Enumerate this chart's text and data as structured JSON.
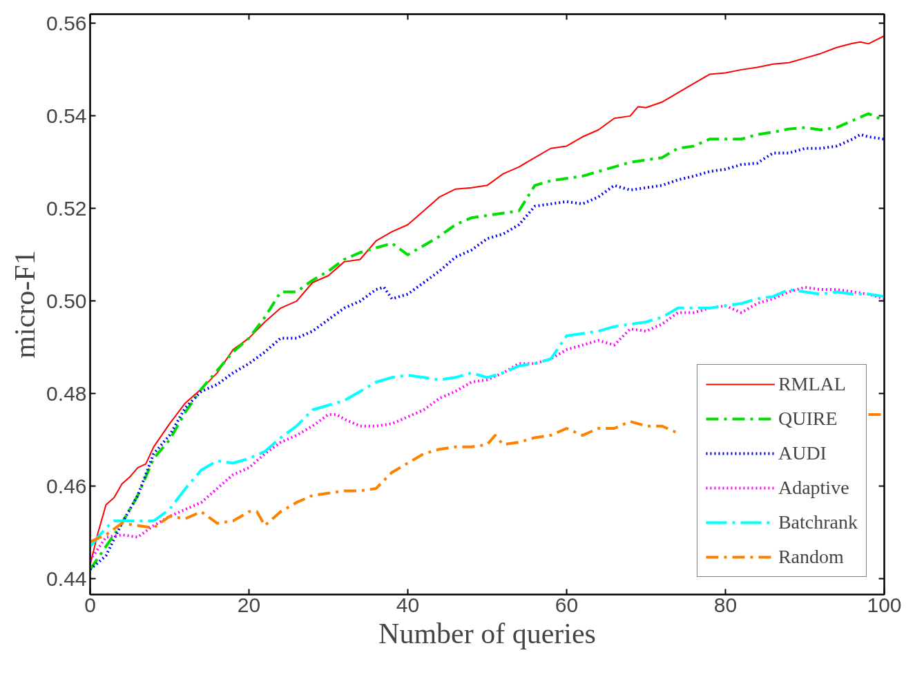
{
  "chart_data": {
    "type": "line",
    "xlabel": "Number of queries",
    "ylabel": "micro-F1",
    "xlim": [
      0,
      100
    ],
    "ylim": [
      0.4366,
      0.562
    ],
    "xticks": [
      0,
      20,
      40,
      60,
      80,
      100
    ],
    "yticks": [
      {
        "value": 0.44,
        "label": "0.44"
      },
      {
        "value": 0.46,
        "label": "0.46"
      },
      {
        "value": 0.48,
        "label": "0.48"
      },
      {
        "value": 0.5,
        "label": "0.50"
      },
      {
        "value": 0.52,
        "label": "0.52"
      },
      {
        "value": 0.54,
        "label": "0.54"
      },
      {
        "value": 0.56,
        "label": "0.56"
      }
    ],
    "grid": false,
    "legend": "bottom right",
    "marker": "none",
    "series": [
      {
        "name": "RMLAL",
        "color": "#ff0000",
        "line_style": "solid",
        "x": [
          0,
          1,
          2,
          3,
          4,
          5,
          6,
          7,
          8,
          10,
          12,
          14,
          16,
          18,
          20,
          22,
          24,
          26,
          28,
          30,
          32,
          34,
          36,
          38,
          40,
          42,
          44,
          46,
          48,
          50,
          52,
          54,
          56,
          58,
          60,
          62,
          64,
          66,
          68,
          69,
          70,
          72,
          74,
          76,
          78,
          80,
          82,
          84,
          86,
          88,
          90,
          92,
          94,
          96,
          97,
          98,
          100
        ],
        "values": [
          0.443,
          0.45,
          0.456,
          0.4575,
          0.4605,
          0.462,
          0.464,
          0.4648,
          0.4685,
          0.4735,
          0.478,
          0.481,
          0.4845,
          0.4895,
          0.492,
          0.4955,
          0.4985,
          0.5,
          0.504,
          0.5055,
          0.5085,
          0.509,
          0.513,
          0.515,
          0.5165,
          0.5195,
          0.5225,
          0.5242,
          0.5245,
          0.525,
          0.5275,
          0.529,
          0.531,
          0.533,
          0.5335,
          0.5355,
          0.537,
          0.5395,
          0.54,
          0.542,
          0.5418,
          0.543,
          0.545,
          0.547,
          0.549,
          0.5493,
          0.55,
          0.5505,
          0.5512,
          0.5515,
          0.5525,
          0.5535,
          0.5548,
          0.5557,
          0.556,
          0.5556,
          0.5573
        ]
      },
      {
        "name": "QUIRE",
        "color": "#00dd00",
        "line_style": "dashdot",
        "x": [
          0,
          2,
          4,
          6,
          8,
          10,
          12,
          14,
          16,
          18,
          20,
          22,
          24,
          26,
          28,
          30,
          32,
          34,
          36,
          38,
          40,
          42,
          44,
          46,
          48,
          50,
          52,
          54,
          56,
          58,
          60,
          62,
          64,
          66,
          68,
          70,
          72,
          74,
          76,
          78,
          80,
          82,
          84,
          86,
          88,
          90,
          92,
          94,
          96,
          98,
          100
        ],
        "values": [
          0.442,
          0.447,
          0.452,
          0.458,
          0.466,
          0.47,
          0.476,
          0.481,
          0.485,
          0.489,
          0.492,
          0.4965,
          0.502,
          0.502,
          0.5045,
          0.5065,
          0.509,
          0.5105,
          0.5115,
          0.5125,
          0.51,
          0.512,
          0.514,
          0.5165,
          0.518,
          0.5185,
          0.519,
          0.5195,
          0.525,
          0.526,
          0.5265,
          0.527,
          0.528,
          0.529,
          0.53,
          0.5305,
          0.531,
          0.533,
          0.5335,
          0.535,
          0.535,
          0.535,
          0.536,
          0.5365,
          0.5372,
          0.5375,
          0.537,
          0.5375,
          0.539,
          0.5405,
          0.539
        ]
      },
      {
        "name": "AUDI",
        "color": "#0000ee",
        "line_style": "dotted",
        "x": [
          0,
          2,
          4,
          6,
          8,
          10,
          12,
          14,
          16,
          18,
          20,
          22,
          24,
          26,
          28,
          30,
          32,
          34,
          36,
          37,
          38,
          40,
          42,
          44,
          46,
          48,
          50,
          52,
          54,
          56,
          58,
          60,
          62,
          64,
          66,
          68,
          70,
          72,
          74,
          76,
          78,
          80,
          82,
          84,
          86,
          88,
          90,
          92,
          94,
          96,
          97,
          98,
          100
        ],
        "values": [
          0.442,
          0.445,
          0.452,
          0.458,
          0.467,
          0.471,
          0.477,
          0.4805,
          0.482,
          0.4845,
          0.4865,
          0.489,
          0.492,
          0.492,
          0.4935,
          0.496,
          0.4985,
          0.5,
          0.5025,
          0.503,
          0.5005,
          0.5015,
          0.504,
          0.5065,
          0.5095,
          0.511,
          0.5135,
          0.5145,
          0.5165,
          0.5205,
          0.521,
          0.5215,
          0.521,
          0.5225,
          0.525,
          0.524,
          0.5245,
          0.525,
          0.5262,
          0.527,
          0.528,
          0.5285,
          0.5295,
          0.5298,
          0.532,
          0.532,
          0.533,
          0.533,
          0.5335,
          0.535,
          0.536,
          0.5355,
          0.535
        ]
      },
      {
        "name": "Adaptive",
        "color": "#ff00ff",
        "line_style": "dotted",
        "x": [
          0,
          2,
          4,
          6,
          8,
          10,
          12,
          14,
          16,
          18,
          20,
          22,
          24,
          26,
          28,
          30,
          31,
          32,
          34,
          36,
          38,
          40,
          42,
          44,
          46,
          48,
          50,
          52,
          54,
          56,
          58,
          60,
          62,
          64,
          66,
          68,
          70,
          72,
          74,
          76,
          78,
          80,
          82,
          84,
          86,
          88,
          90,
          92,
          94,
          96,
          98,
          100
        ],
        "values": [
          0.444,
          0.449,
          0.4495,
          0.449,
          0.4515,
          0.4535,
          0.455,
          0.4565,
          0.4595,
          0.4625,
          0.464,
          0.467,
          0.4695,
          0.471,
          0.473,
          0.4755,
          0.4755,
          0.4745,
          0.473,
          0.473,
          0.4735,
          0.475,
          0.4765,
          0.479,
          0.4805,
          0.4825,
          0.483,
          0.4845,
          0.4865,
          0.4865,
          0.4875,
          0.4895,
          0.4905,
          0.4915,
          0.4905,
          0.494,
          0.4935,
          0.495,
          0.4975,
          0.4975,
          0.4985,
          0.499,
          0.4975,
          0.4995,
          0.5005,
          0.502,
          0.503,
          0.5025,
          0.5025,
          0.502,
          0.5015,
          0.5005
        ]
      },
      {
        "name": "Batchrank",
        "color": "#00ffff",
        "line_style": "longdashdot",
        "x": [
          0,
          2,
          3,
          6,
          8,
          10,
          12,
          14,
          16,
          18,
          20,
          22,
          24,
          26,
          28,
          30,
          32,
          34,
          36,
          38,
          40,
          42,
          44,
          46,
          48,
          50,
          52,
          54,
          56,
          58,
          60,
          62,
          64,
          66,
          68,
          70,
          72,
          74,
          76,
          78,
          80,
          82,
          84,
          86,
          88,
          90,
          92,
          94,
          96,
          98,
          100
        ],
        "values": [
          0.447,
          0.451,
          0.4525,
          0.4525,
          0.4525,
          0.455,
          0.4595,
          0.4635,
          0.4655,
          0.465,
          0.466,
          0.4675,
          0.4705,
          0.473,
          0.4765,
          0.4775,
          0.4785,
          0.4805,
          0.4825,
          0.4835,
          0.484,
          0.4835,
          0.483,
          0.4835,
          0.4845,
          0.4835,
          0.4845,
          0.486,
          0.4865,
          0.4875,
          0.4925,
          0.493,
          0.4935,
          0.4945,
          0.495,
          0.4955,
          0.4965,
          0.4985,
          0.4985,
          0.4985,
          0.499,
          0.4995,
          0.5005,
          0.501,
          0.5025,
          0.502,
          0.5015,
          0.502,
          0.5015,
          0.5015,
          0.501
        ]
      },
      {
        "name": "Random",
        "color": "#ff8000",
        "line_style": "dashdot",
        "x": [
          0,
          2,
          4,
          6,
          8,
          10,
          12,
          14,
          16,
          18,
          20,
          21,
          22,
          24,
          26,
          28,
          30,
          32,
          34,
          36,
          38,
          40,
          42,
          44,
          46,
          48,
          50,
          51,
          52,
          54,
          56,
          58,
          60,
          62,
          64,
          66,
          68,
          70,
          72,
          74,
          76,
          98,
          100
        ],
        "values": [
          0.448,
          0.4495,
          0.452,
          0.4515,
          0.451,
          0.4535,
          0.453,
          0.4545,
          0.452,
          0.4525,
          0.4545,
          0.4545,
          0.4515,
          0.4545,
          0.4565,
          0.458,
          0.4585,
          0.459,
          0.459,
          0.4595,
          0.463,
          0.465,
          0.467,
          0.468,
          0.4685,
          0.4685,
          0.469,
          0.471,
          0.469,
          0.4695,
          0.4705,
          0.471,
          0.4725,
          0.471,
          0.4725,
          0.4725,
          0.474,
          0.473,
          0.473,
          0.4715,
          null,
          0.4755,
          0.4755
        ]
      }
    ]
  }
}
